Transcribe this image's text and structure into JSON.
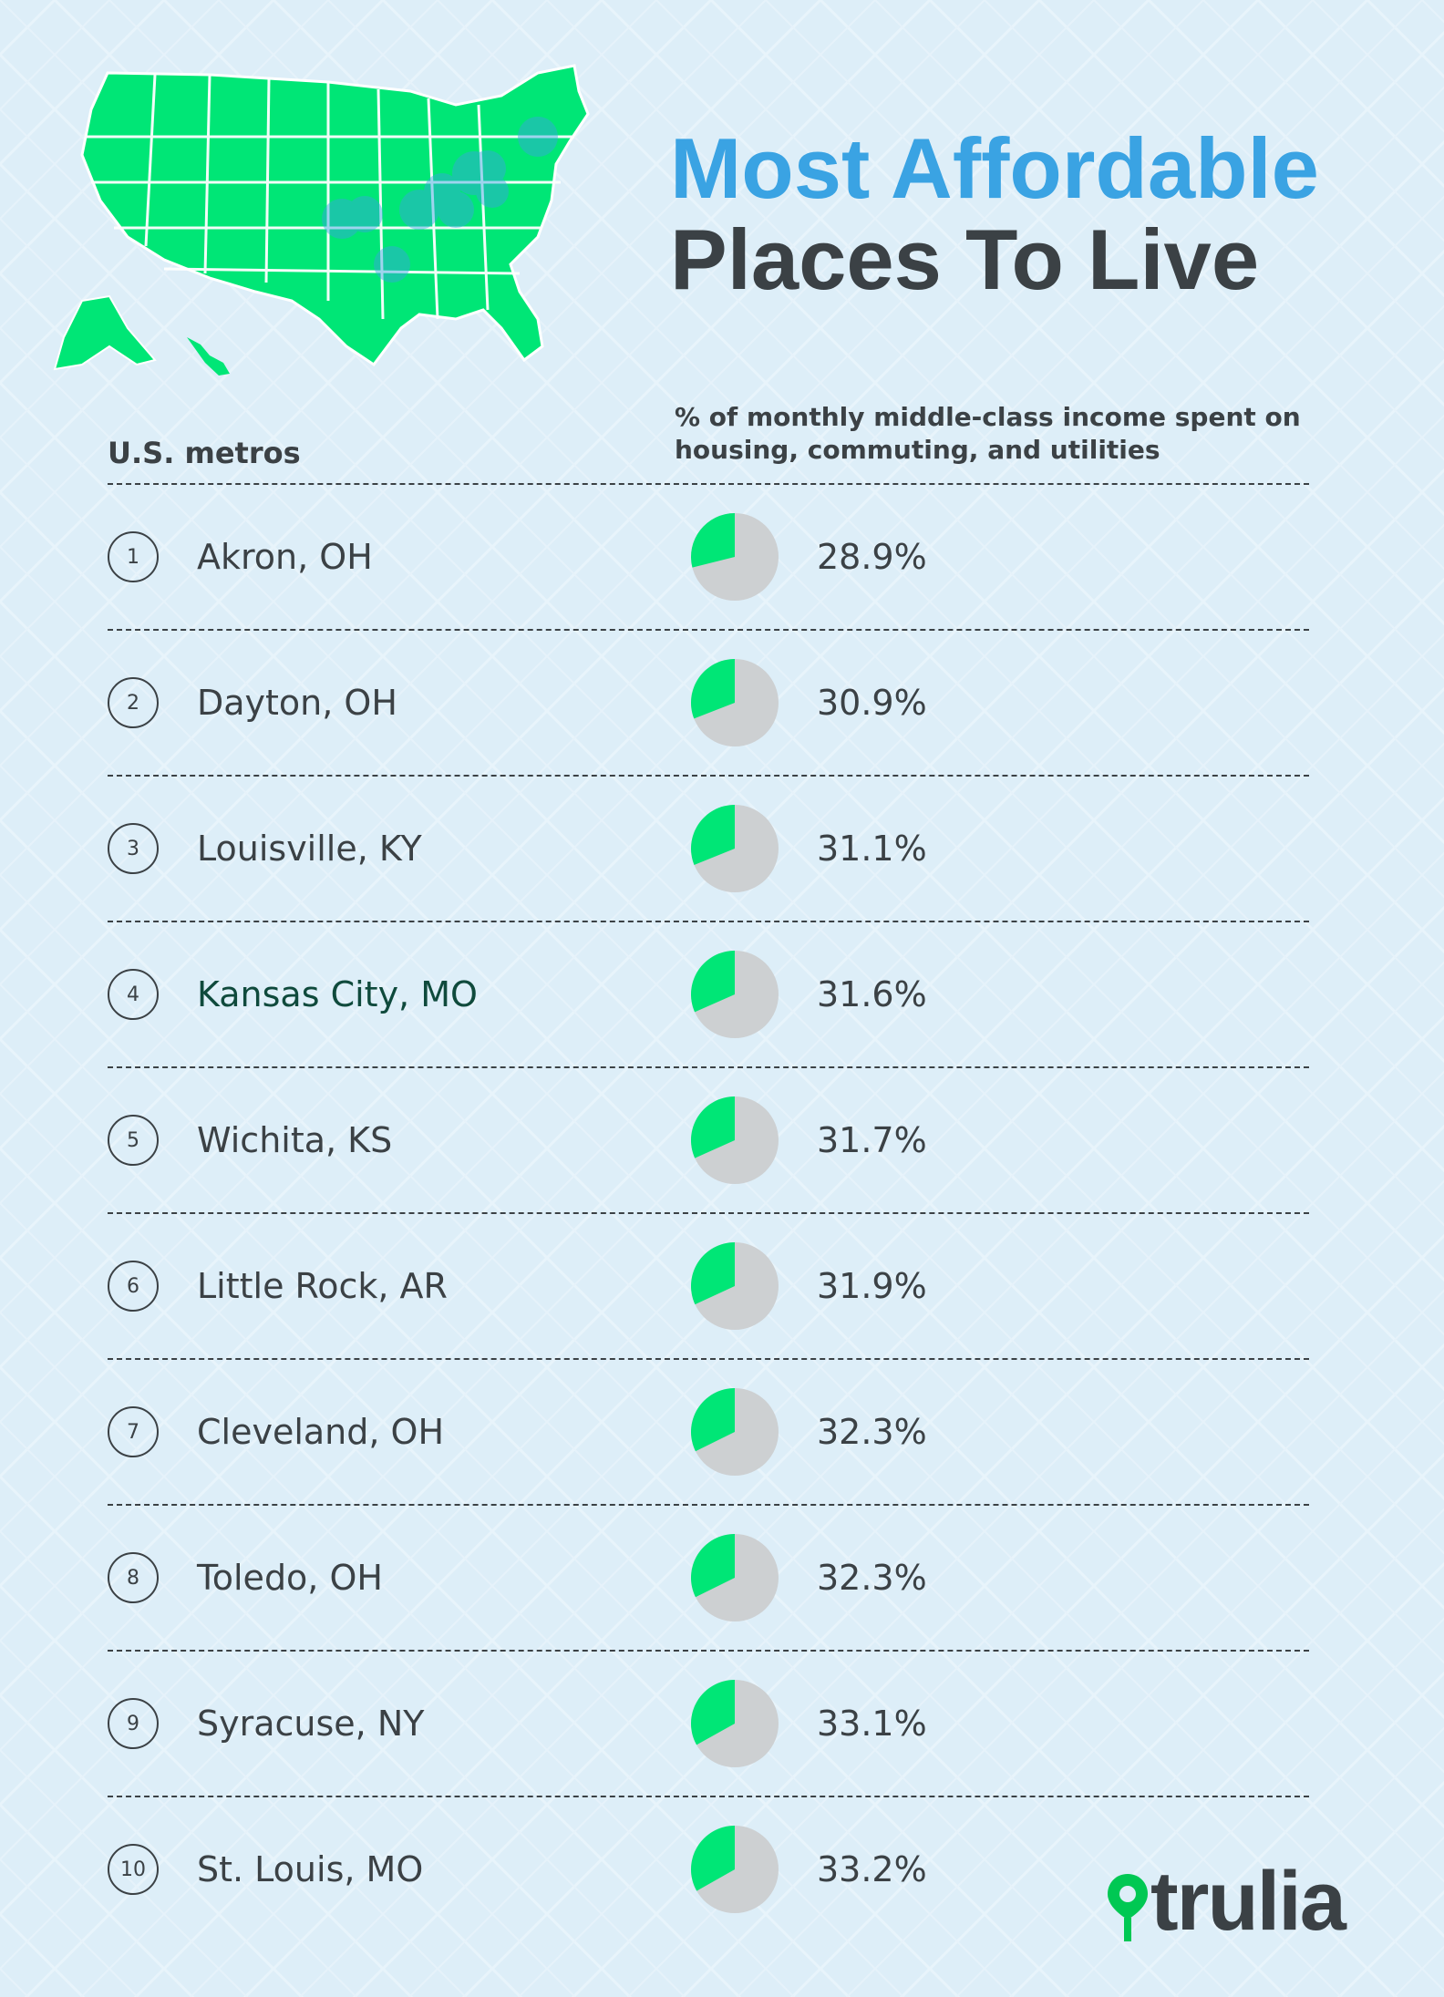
{
  "title": {
    "line1": "Most Affordable",
    "line2": "Places To Live"
  },
  "columns": {
    "left": "U.S. metros",
    "right": "% of monthly middle-class income spent on housing, commuting, and utilities"
  },
  "colors": {
    "accent": "#00e676",
    "pie_bg": "#cdd0d2",
    "title_blue": "#3aa3e3",
    "text": "#3b4145",
    "map": "#00e676"
  },
  "icons": {
    "logo": "trulia-pin-icon"
  },
  "chart_data": {
    "type": "pie",
    "categories": [
      "Akron, OH",
      "Dayton, OH",
      "Louisville, KY",
      "Kansas City, MO",
      "Wichita, KS",
      "Little Rock, AR",
      "Cleveland, OH",
      "Toledo, OH",
      "Syracuse, NY",
      "St. Louis, MO"
    ],
    "ranks": [
      "1",
      "2",
      "3",
      "4",
      "5",
      "6",
      "7",
      "8",
      "9",
      "10"
    ],
    "values": [
      28.9,
      30.9,
      31.1,
      31.6,
      31.7,
      31.9,
      32.3,
      32.3,
      33.1,
      33.2
    ],
    "labels": [
      "28.9%",
      "30.9%",
      "31.1%",
      "31.6%",
      "31.7%",
      "31.9%",
      "32.3%",
      "32.3%",
      "33.1%",
      "33.2%"
    ]
  },
  "logo": {
    "text": "trulia"
  }
}
